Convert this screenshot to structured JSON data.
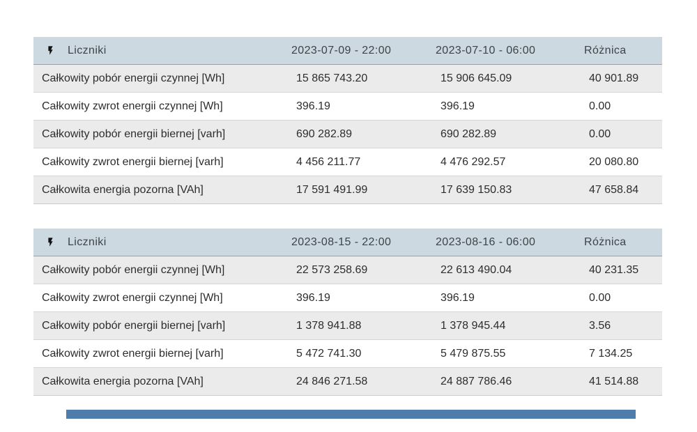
{
  "theme": {
    "page_background": "#ffffff",
    "header_background": "#cdd9e0",
    "header_text_color": "#3c434a",
    "row_alt_background": "#ebebeb",
    "row_background": "#ffffff",
    "row_text_color": "#2d2d2d",
    "header_divider_color": "#99a1a7",
    "row_divider_color": "#d5d5d5",
    "scrollbar_color": "#4e7dab"
  },
  "icons": {
    "table_icon": "lightning-bolt-icon"
  },
  "tables": [
    {
      "title": "Liczniki",
      "columns": [
        "2023-07-09 - 22:00",
        "2023-07-10 - 06:00",
        "Różnica"
      ],
      "rows": [
        {
          "label": "Całkowity pobór energii czynnej [Wh]",
          "values": [
            "15 865 743.20",
            "15 906 645.09",
            "40 901.89"
          ]
        },
        {
          "label": "Całkowity zwrot energii czynnej [Wh]",
          "values": [
            "396.19",
            "396.19",
            "0.00"
          ]
        },
        {
          "label": "Całkowity pobór energii biernej [varh]",
          "values": [
            "690 282.89",
            "690 282.89",
            "0.00"
          ]
        },
        {
          "label": "Całkowity zwrot energii biernej [varh]",
          "values": [
            "4 456 211.77",
            "4 476 292.57",
            "20 080.80"
          ]
        },
        {
          "label": "Całkowita energia pozorna [VAh]",
          "values": [
            "17 591 491.99",
            "17 639 150.83",
            "47 658.84"
          ]
        }
      ]
    },
    {
      "title": "Liczniki",
      "columns": [
        "2023-08-15 - 22:00",
        "2023-08-16 - 06:00",
        "Różnica"
      ],
      "rows": [
        {
          "label": "Całkowity pobór energii czynnej [Wh]",
          "values": [
            "22 573 258.69",
            "22 613 490.04",
            "40 231.35"
          ]
        },
        {
          "label": "Całkowity zwrot energii czynnej [Wh]",
          "values": [
            "396.19",
            "396.19",
            "0.00"
          ]
        },
        {
          "label": "Całkowity pobór energii biernej [varh]",
          "values": [
            "1 378 941.88",
            "1 378 945.44",
            "3.56"
          ]
        },
        {
          "label": "Całkowity zwrot energii biernej [varh]",
          "values": [
            "5 472 741.30",
            "5 479 875.55",
            "7 134.25"
          ]
        },
        {
          "label": "Całkowita energia pozorna [VAh]",
          "values": [
            "24 846 271.58",
            "24 887 786.46",
            "41 514.88"
          ]
        }
      ]
    }
  ]
}
